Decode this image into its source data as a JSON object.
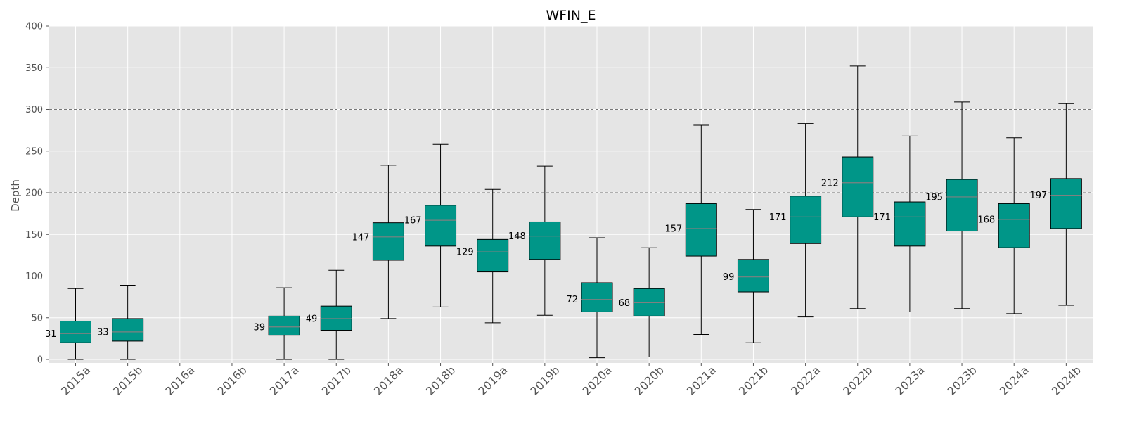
{
  "chart_data": {
    "type": "box",
    "title": "WFIN_E",
    "xlabel": "",
    "ylabel": "Depth",
    "ylim": [
      0,
      400
    ],
    "yticks": [
      0,
      50,
      100,
      150,
      200,
      250,
      300,
      350,
      400
    ],
    "reference_lines": [
      100,
      200,
      300
    ],
    "grid": true,
    "box_color": "#009688",
    "median_color": "#808080",
    "background_color": "#e5e5e5",
    "categories": [
      "2015a",
      "2015b",
      "2016a",
      "2016b",
      "2017a",
      "2017b",
      "2018a",
      "2018b",
      "2019a",
      "2019b",
      "2020a",
      "2020b",
      "2021a",
      "2021b",
      "2022a",
      "2022b",
      "2023a",
      "2023b",
      "2024a",
      "2024b"
    ],
    "boxes": [
      {
        "category": "2015a",
        "min": 0,
        "q1": 20,
        "median": 31,
        "q3": 46,
        "max": 85,
        "label": "31"
      },
      {
        "category": "2015b",
        "min": 0,
        "q1": 22,
        "median": 33,
        "q3": 49,
        "max": 89,
        "label": "33"
      },
      null,
      null,
      {
        "category": "2017a",
        "min": 0,
        "q1": 29,
        "median": 39,
        "q3": 52,
        "max": 86,
        "label": "39"
      },
      {
        "category": "2017b",
        "min": 0,
        "q1": 35,
        "median": 49,
        "q3": 64,
        "max": 107,
        "label": "49"
      },
      {
        "category": "2018a",
        "min": 49,
        "q1": 119,
        "median": 147,
        "q3": 164,
        "max": 233,
        "label": "147"
      },
      {
        "category": "2018b",
        "min": 63,
        "q1": 136,
        "median": 167,
        "q3": 185,
        "max": 258,
        "label": "167"
      },
      {
        "category": "2019a",
        "min": 44,
        "q1": 105,
        "median": 129,
        "q3": 144,
        "max": 204,
        "label": "129"
      },
      {
        "category": "2019b",
        "min": 53,
        "q1": 120,
        "median": 148,
        "q3": 165,
        "max": 232,
        "label": "148"
      },
      {
        "category": "2020a",
        "min": 2,
        "q1": 57,
        "median": 72,
        "q3": 92,
        "max": 146,
        "label": "72"
      },
      {
        "category": "2020b",
        "min": 3,
        "q1": 52,
        "median": 68,
        "q3": 85,
        "max": 134,
        "label": "68"
      },
      {
        "category": "2021a",
        "min": 30,
        "q1": 124,
        "median": 157,
        "q3": 187,
        "max": 281,
        "label": "157"
      },
      {
        "category": "2021b",
        "min": 20,
        "q1": 81,
        "median": 99,
        "q3": 120,
        "max": 180,
        "label": "99"
      },
      {
        "category": "2022a",
        "min": 51,
        "q1": 139,
        "median": 171,
        "q3": 196,
        "max": 283,
        "label": "171"
      },
      {
        "category": "2022b",
        "min": 61,
        "q1": 171,
        "median": 212,
        "q3": 243,
        "max": 352,
        "label": "212"
      },
      {
        "category": "2023a",
        "min": 57,
        "q1": 136,
        "median": 171,
        "q3": 189,
        "max": 268,
        "label": "171"
      },
      {
        "category": "2023b",
        "min": 61,
        "q1": 154,
        "median": 195,
        "q3": 216,
        "max": 309,
        "label": "195"
      },
      {
        "category": "2024a",
        "min": 55,
        "q1": 134,
        "median": 168,
        "q3": 187,
        "max": 266,
        "label": "168"
      },
      {
        "category": "2024b",
        "min": 65,
        "q1": 157,
        "median": 197,
        "q3": 217,
        "max": 307,
        "label": "197"
      }
    ]
  }
}
